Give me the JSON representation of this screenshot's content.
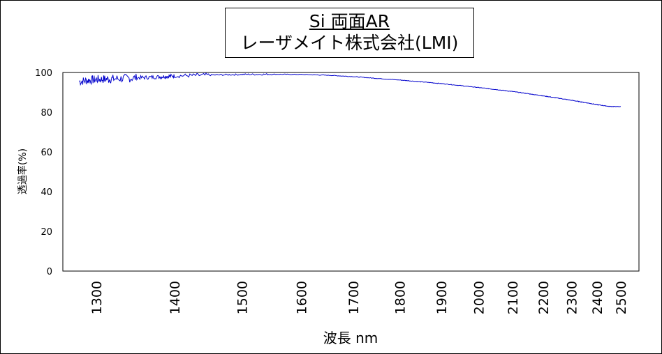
{
  "chart_data": {
    "type": "line",
    "title_line1": "Si 両面AR",
    "title_line2": "レーザメイト株式会社(LMI)",
    "xlabel": "波長 nm",
    "ylabel": "透過率(%)",
    "ylim": [
      0,
      100
    ],
    "y_ticks": [
      "0",
      "20",
      "40",
      "60",
      "80",
      "100"
    ],
    "x_scale": "reciprocal",
    "x_ticks": [
      "1300",
      "1400",
      "1500",
      "1600",
      "1700",
      "1800",
      "1900",
      "2000",
      "2100",
      "2200",
      "2300",
      "2400",
      "2500"
    ],
    "grid": false,
    "series_color": "#0000cc",
    "series": [
      {
        "x": [
          1280,
          1300,
          1320,
          1350,
          1380,
          1400,
          1450,
          1500,
          1550,
          1600,
          1650,
          1700,
          1750,
          1800,
          1850,
          1900,
          1950,
          2000,
          2050,
          2100,
          2150,
          2200,
          2250,
          2300,
          2350,
          2400,
          2450,
          2500
        ],
        "y": [
          95.5,
          96.5,
          96.8,
          97.3,
          97.8,
          98.3,
          98.7,
          99.0,
          99.1,
          99.0,
          98.6,
          97.9,
          97.0,
          96.2,
          95.3,
          94.4,
          93.4,
          92.4,
          91.4,
          90.4,
          89.3,
          88.2,
          87.1,
          86.0,
          84.9,
          83.8,
          82.9,
          82.8
        ]
      }
    ]
  }
}
